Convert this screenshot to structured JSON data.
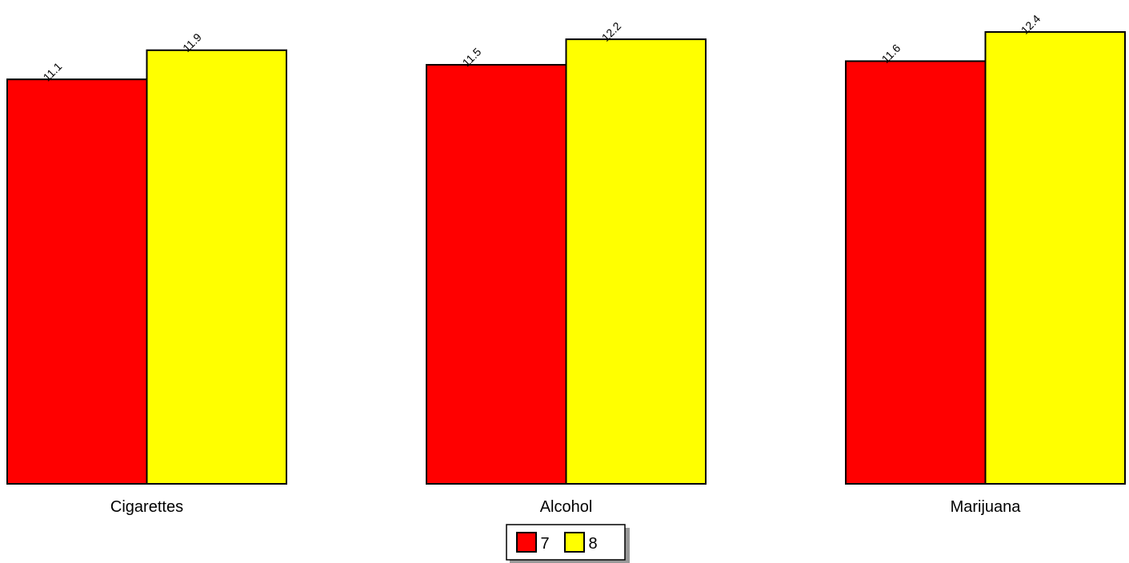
{
  "chart_data": {
    "type": "bar",
    "title": "",
    "xlabel": "",
    "ylabel": "",
    "categories": [
      "Cigarettes",
      "Alcohol",
      "Marijuana"
    ],
    "series": [
      {
        "name": "7",
        "values": [
          11.1,
          11.5,
          11.6
        ],
        "color": "#ff0000"
      },
      {
        "name": "8",
        "values": [
          11.9,
          12.2,
          12.4
        ],
        "color": "#ffff00"
      }
    ],
    "ylim": [
      0,
      12.4
    ],
    "grid": false,
    "legend_position": "bottom-center",
    "data_labels": true
  }
}
